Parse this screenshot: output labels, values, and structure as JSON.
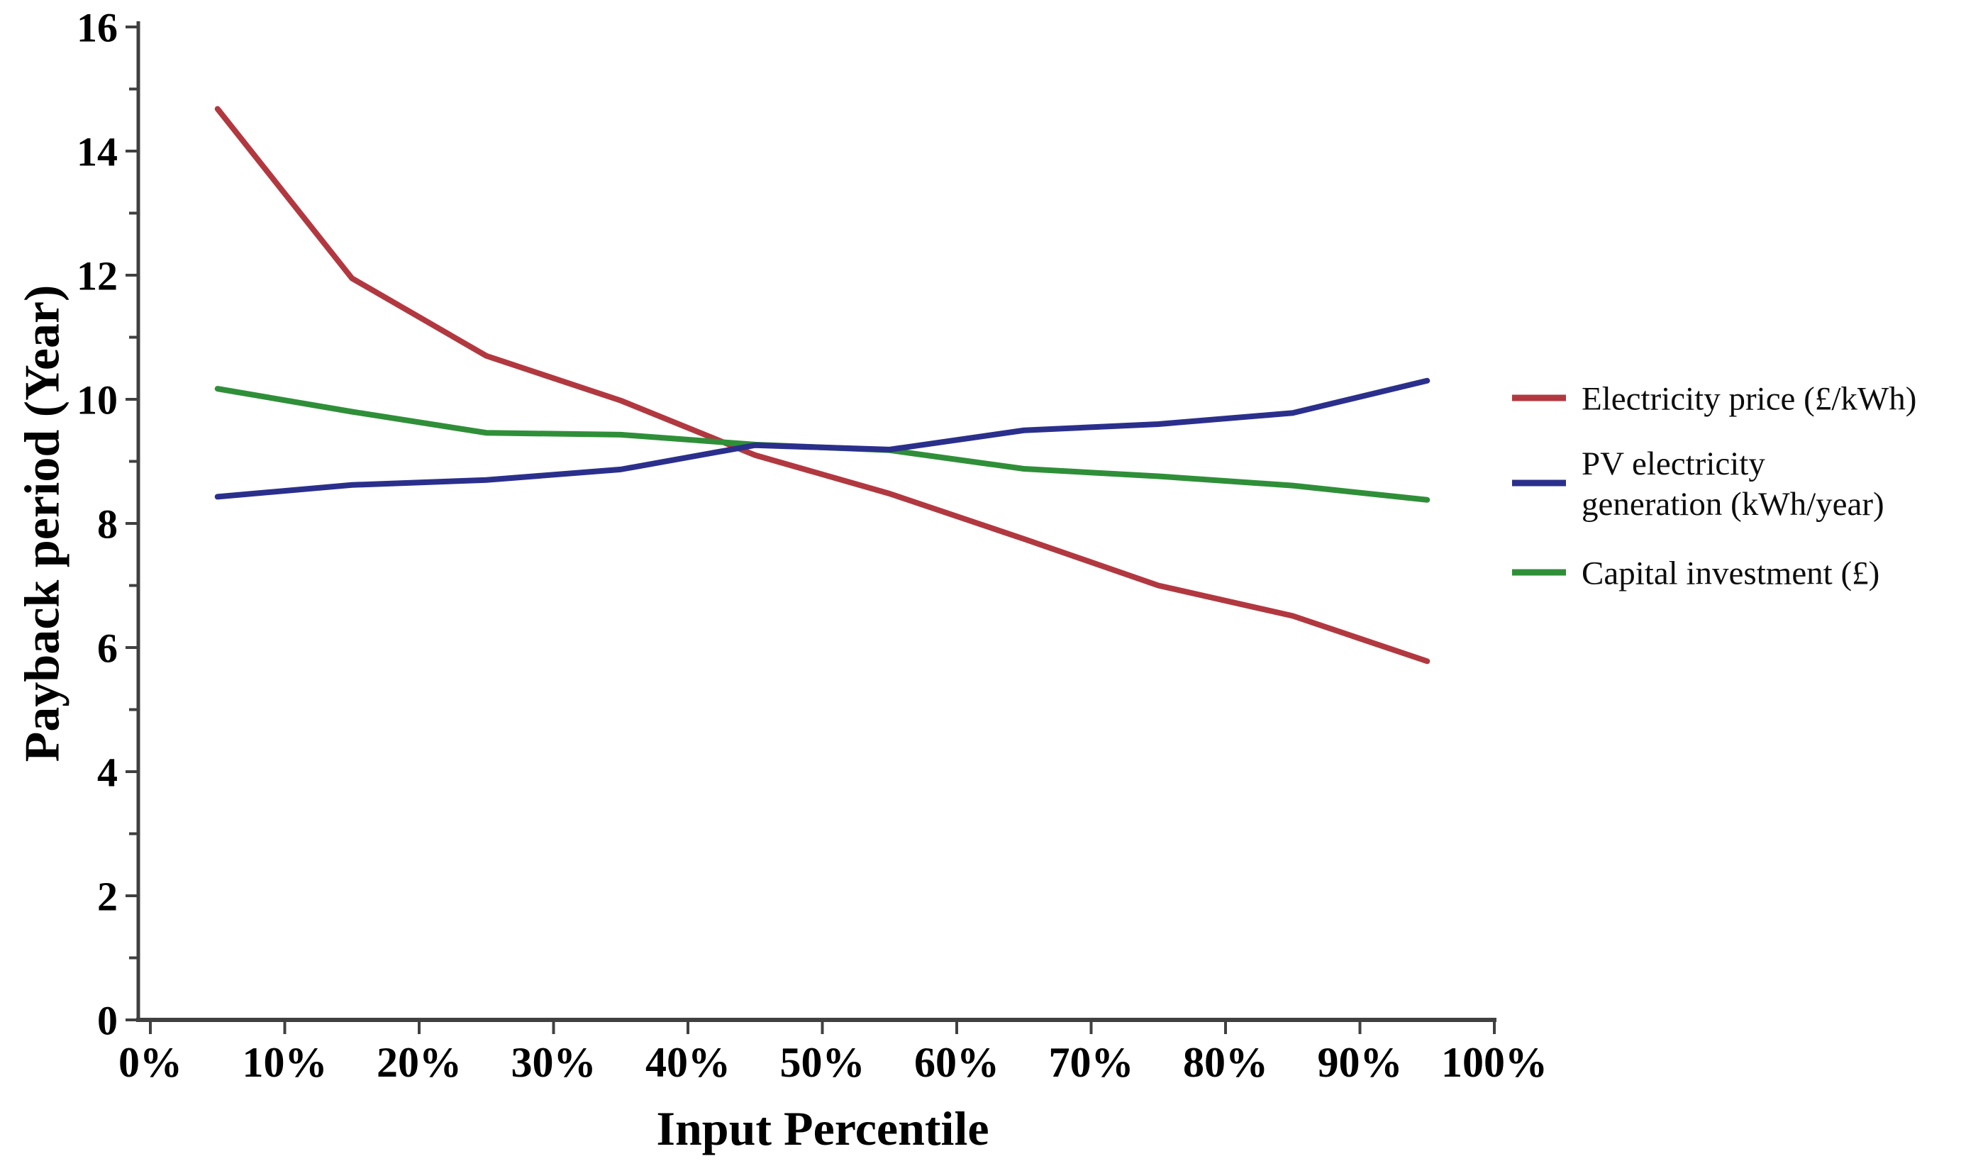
{
  "chart_data": {
    "type": "line",
    "title": "",
    "xlabel": "Input Percentile",
    "ylabel": "Payback period (Year)",
    "x_percentiles": [
      5,
      15,
      25,
      35,
      45,
      55,
      65,
      75,
      85,
      95
    ],
    "series": [
      {
        "name": "Electricity price (£/kWh)",
        "color": "#b23840",
        "z": 0,
        "values": [
          14.68,
          11.95,
          10.7,
          9.98,
          9.1,
          8.48,
          7.75,
          7.0,
          6.51,
          5.78
        ]
      },
      {
        "name": "PV electricity generation (kWh/year)",
        "color": "#2b2f8c",
        "z": 2,
        "values": [
          8.43,
          8.62,
          8.7,
          8.87,
          9.26,
          9.19,
          9.5,
          9.6,
          9.78,
          10.3
        ]
      },
      {
        "name": "Capital investment (£)",
        "color": "#2f8f38",
        "z": 1,
        "values": [
          10.17,
          9.8,
          9.46,
          9.43,
          9.27,
          9.18,
          8.88,
          8.76,
          8.61,
          8.38
        ]
      }
    ],
    "xlim": [
      0,
      100
    ],
    "ylim": [
      0,
      16
    ],
    "y_major_step": 2,
    "y_minor_step": 1,
    "x_tick_step": 10,
    "y_tick_labels": [
      "0",
      "2",
      "4",
      "6",
      "8",
      "10",
      "12",
      "14",
      "16"
    ],
    "x_tick_labels": [
      "0%",
      "10%",
      "20%",
      "30%",
      "40%",
      "50%",
      "60%",
      "70%",
      "80%",
      "90%",
      "100%"
    ],
    "grid": false,
    "legend_position": "right"
  },
  "legend": {
    "entries": [
      {
        "label_lines": [
          "Electricity price (£/kWh)"
        ],
        "color": "#b23840",
        "series": "Electricity price (£/kWh)"
      },
      {
        "label_lines": [
          "PV electricity",
          "generation (kWh/year)"
        ],
        "color": "#2b2f8c",
        "series": "PV electricity generation (kWh/year)"
      },
      {
        "label_lines": [
          "Capital investment (£)"
        ],
        "color": "#2f8f38",
        "series": "Capital investment (£)"
      }
    ]
  },
  "style_colors": {
    "axis": "#404040",
    "text": "#000000",
    "background": "#ffffff"
  }
}
